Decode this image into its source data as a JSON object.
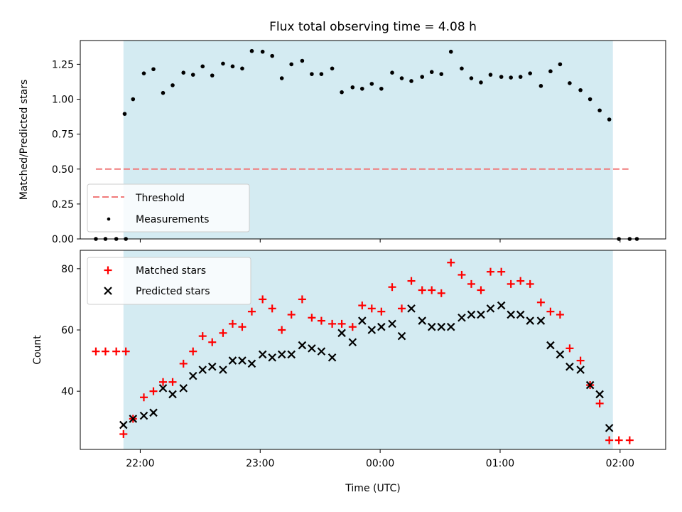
{
  "chart_data": [
    {
      "type": "scatter",
      "title": "Flux total observing time = 4.08 h",
      "ylabel": "Matched/Predicted stars",
      "ylim": [
        0,
        1.42
      ],
      "xlim": [
        21.5,
        26.38
      ],
      "yticks": [
        {
          "v": 0.0,
          "label": "0.00"
        },
        {
          "v": 0.25,
          "label": "0.25"
        },
        {
          "v": 0.5,
          "label": "0.50"
        },
        {
          "v": 0.75,
          "label": "0.75"
        },
        {
          "v": 1.0,
          "label": "1.00"
        },
        {
          "v": 1.25,
          "label": "1.25"
        }
      ],
      "shaded_span": [
        21.86,
        25.94
      ],
      "threshold": {
        "y": 0.5,
        "x_range": [
          21.63,
          26.07
        ],
        "color": "#f07a7a"
      },
      "legend_position": "lower-left",
      "legend": [
        {
          "key": "threshold",
          "label": "Threshold"
        },
        {
          "key": "measurements",
          "label": "Measurements"
        }
      ],
      "series": [
        {
          "name": "Measurements",
          "marker": "dot",
          "color": "#000000",
          "x": [
            21.63,
            21.71,
            21.8,
            21.88,
            21.87,
            21.94,
            22.03,
            22.11,
            22.19,
            22.27,
            22.36,
            22.44,
            22.52,
            22.6,
            22.69,
            22.77,
            22.85,
            22.93,
            23.02,
            23.1,
            23.18,
            23.26,
            23.35,
            23.43,
            23.51,
            23.6,
            23.68,
            23.77,
            23.85,
            23.93,
            24.01,
            24.1,
            24.18,
            24.26,
            24.35,
            24.43,
            24.51,
            24.59,
            24.68,
            24.76,
            24.84,
            24.92,
            25.01,
            25.09,
            25.17,
            25.25,
            25.34,
            25.42,
            25.5,
            25.58,
            25.67,
            25.75,
            25.83,
            25.91,
            25.99,
            26.08,
            26.14
          ],
          "y": [
            0,
            0,
            0,
            0,
            0.895,
            1.0,
            1.185,
            1.215,
            1.045,
            1.1,
            1.19,
            1.175,
            1.235,
            1.17,
            1.255,
            1.235,
            1.22,
            1.345,
            1.34,
            1.31,
            1.15,
            1.25,
            1.275,
            1.18,
            1.18,
            1.22,
            1.05,
            1.085,
            1.075,
            1.11,
            1.075,
            1.19,
            1.15,
            1.13,
            1.16,
            1.195,
            1.18,
            1.34,
            1.22,
            1.15,
            1.12,
            1.175,
            1.16,
            1.155,
            1.16,
            1.185,
            1.095,
            1.2,
            1.25,
            1.115,
            1.065,
            1.0,
            0.92,
            0.855,
            0,
            0,
            0
          ]
        }
      ]
    },
    {
      "type": "scatter",
      "xlabel": "Time (UTC)",
      "ylabel": "Count",
      "ylim": [
        21,
        86
      ],
      "xlim": [
        21.5,
        26.38
      ],
      "xticks": [
        {
          "v": 22,
          "label": "22:00"
        },
        {
          "v": 23,
          "label": "23:00"
        },
        {
          "v": 24,
          "label": "00:00"
        },
        {
          "v": 25,
          "label": "01:00"
        },
        {
          "v": 26,
          "label": "02:00"
        }
      ],
      "yticks": [
        {
          "v": 40,
          "label": "40"
        },
        {
          "v": 60,
          "label": "60"
        },
        {
          "v": 80,
          "label": "80"
        }
      ],
      "shaded_span": [
        21.86,
        25.94
      ],
      "legend_position": "top-left",
      "series": [
        {
          "name": "Matched stars",
          "marker": "plus",
          "color": "#ff0000",
          "x": [
            21.63,
            21.71,
            21.8,
            21.88,
            21.86,
            21.94,
            22.03,
            22.11,
            22.19,
            22.27,
            22.36,
            22.44,
            22.52,
            22.6,
            22.69,
            22.77,
            22.85,
            22.93,
            23.02,
            23.1,
            23.18,
            23.26,
            23.35,
            23.43,
            23.51,
            23.6,
            23.68,
            23.77,
            23.85,
            23.93,
            24.01,
            24.1,
            24.18,
            24.26,
            24.35,
            24.43,
            24.51,
            24.59,
            24.68,
            24.76,
            24.84,
            24.92,
            25.01,
            25.09,
            25.17,
            25.25,
            25.34,
            25.42,
            25.5,
            25.58,
            25.67,
            25.75,
            25.83,
            25.91,
            25.99,
            26.08
          ],
          "y": [
            53,
            53,
            53,
            53,
            26,
            31,
            38,
            40,
            43,
            43,
            49,
            53,
            58,
            56,
            59,
            62,
            61,
            66,
            70,
            67,
            60,
            65,
            70,
            64,
            63,
            62,
            62,
            61,
            68,
            67,
            66,
            74,
            67,
            76,
            73,
            73,
            72,
            82,
            78,
            75,
            73,
            79,
            79,
            75,
            76,
            75,
            69,
            66,
            65,
            54,
            50,
            42,
            36,
            24,
            24,
            24
          ]
        },
        {
          "name": "Predicted stars",
          "marker": "x",
          "color": "#000000",
          "x": [
            21.86,
            21.94,
            22.03,
            22.11,
            22.19,
            22.27,
            22.36,
            22.44,
            22.52,
            22.6,
            22.69,
            22.77,
            22.85,
            22.93,
            23.02,
            23.1,
            23.18,
            23.26,
            23.35,
            23.43,
            23.51,
            23.6,
            23.68,
            23.77,
            23.85,
            23.93,
            24.01,
            24.1,
            24.18,
            24.26,
            24.35,
            24.43,
            24.51,
            24.59,
            24.68,
            24.76,
            24.84,
            24.92,
            25.01,
            25.09,
            25.17,
            25.25,
            25.34,
            25.42,
            25.5,
            25.58,
            25.67,
            25.75,
            25.83,
            25.91
          ],
          "y": [
            29,
            31,
            32,
            33,
            41,
            39,
            41,
            45,
            47,
            48,
            47,
            50,
            50,
            49,
            52,
            51,
            52,
            52,
            55,
            54,
            53,
            51,
            59,
            56,
            63,
            60,
            61,
            62,
            58,
            67,
            63,
            61,
            61,
            61,
            64,
            65,
            65,
            67,
            68,
            65,
            65,
            63,
            63,
            55,
            52,
            48,
            47,
            42,
            39,
            28
          ]
        }
      ]
    }
  ]
}
